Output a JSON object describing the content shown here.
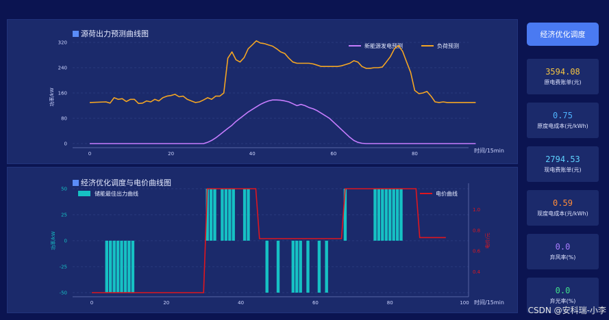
{
  "top_chart": {
    "title": "源荷出力预测曲线图",
    "ylabel": "功率/kW",
    "xlabel": "时间/15min",
    "legend": [
      "新能源发电预测",
      "负荷预测"
    ]
  },
  "bottom_chart": {
    "title": "经济优化调度与电价曲线图",
    "ylabel_left": "功率/kW",
    "ylabel_right": "电价/元",
    "xlabel": "时间/15min",
    "legend": [
      "储能最佳出力曲线",
      "电价曲线"
    ]
  },
  "sidebar": {
    "button_label": "经济优化调度",
    "cards": [
      {
        "value": "3594.08",
        "label": "原电费账单(元)",
        "color": "#f5c542"
      },
      {
        "value": "0.75",
        "label": "原度电成本(元/kWh)",
        "color": "#4fb3ff"
      },
      {
        "value": "2794.53",
        "label": "现电费账单(元)",
        "color": "#5fd3ff"
      },
      {
        "value": "0.59",
        "label": "现度电成本(元/kWh)",
        "color": "#ff8c3a"
      },
      {
        "value": "0.0",
        "label": "弃风率(%)",
        "color": "#a77bff"
      },
      {
        "value": "0.0",
        "label": "弃光率(%)",
        "color": "#3fe08a"
      }
    ]
  },
  "watermark": "CSDN @安科瑞-小李",
  "chart_data": [
    {
      "type": "line",
      "title": "源荷出力预测曲线图",
      "xlabel": "时间/15min",
      "ylabel": "功率/kW",
      "xlim": [
        0,
        96
      ],
      "ylim": [
        0,
        320
      ],
      "xticks": [
        0,
        20,
        40,
        60,
        80
      ],
      "yticks": [
        0,
        80,
        160,
        240,
        320
      ],
      "series": [
        {
          "name": "新能源发电预测",
          "color": "#c77dff",
          "x": [
            0,
            28,
            29,
            30,
            31,
            32,
            33,
            34,
            35,
            36,
            37,
            38,
            39,
            40,
            41,
            42,
            43,
            44,
            45,
            46,
            47,
            48,
            49,
            50,
            51,
            52,
            53,
            54,
            55,
            56,
            57,
            58,
            59,
            60,
            61,
            62,
            63,
            64,
            65,
            66,
            67,
            68,
            95
          ],
          "values": [
            0,
            0,
            4,
            10,
            18,
            28,
            38,
            48,
            58,
            70,
            80,
            90,
            100,
            108,
            116,
            124,
            130,
            135,
            138,
            138,
            137,
            135,
            132,
            126,
            120,
            124,
            120,
            114,
            110,
            104,
            96,
            88,
            80,
            68,
            56,
            44,
            32,
            20,
            10,
            4,
            1,
            0,
            0
          ]
        },
        {
          "name": "负荷预测",
          "color": "#f5a623",
          "x": [
            0,
            4,
            5,
            6,
            7,
            8,
            9,
            10,
            11,
            12,
            13,
            14,
            15,
            16,
            17,
            18,
            19,
            20,
            21,
            22,
            23,
            24,
            25,
            26,
            27,
            28,
            29,
            30,
            31,
            32,
            33,
            34,
            35,
            36,
            37,
            38,
            39,
            40,
            41,
            42,
            43,
            44,
            45,
            46,
            47,
            48,
            49,
            50,
            51,
            52,
            53,
            54,
            55,
            56,
            57,
            58,
            59,
            60,
            61,
            62,
            63,
            64,
            65,
            66,
            67,
            68,
            69,
            70,
            71,
            72,
            73,
            74,
            75,
            76,
            77,
            78,
            79,
            80,
            81,
            82,
            83,
            84,
            85,
            86,
            87,
            88,
            89,
            90,
            91,
            92,
            93,
            94,
            95
          ],
          "values": [
            130,
            132,
            128,
            145,
            140,
            142,
            133,
            140,
            140,
            127,
            128,
            135,
            132,
            140,
            135,
            145,
            150,
            152,
            156,
            148,
            150,
            140,
            135,
            130,
            132,
            138,
            145,
            140,
            150,
            150,
            160,
            270,
            290,
            265,
            258,
            272,
            300,
            312,
            325,
            318,
            316,
            312,
            308,
            300,
            290,
            285,
            270,
            258,
            254,
            254,
            254,
            254,
            252,
            248,
            244,
            244,
            244,
            244,
            244,
            246,
            250,
            254,
            262,
            258,
            244,
            238,
            238,
            240,
            240,
            242,
            258,
            275,
            300,
            310,
            292,
            258,
            225,
            168,
            158,
            160,
            165,
            150,
            132,
            130,
            132,
            130,
            130,
            130,
            130,
            130,
            130,
            130,
            130
          ]
        }
      ]
    },
    {
      "type": "bar",
      "title": "经济优化调度与电价曲线图",
      "xlabel": "时间/15min",
      "ylabel": "功率/kW",
      "y2label": "电价/元",
      "xlim": [
        0,
        100
      ],
      "ylim": [
        -50,
        50
      ],
      "y2lim": [
        0.2,
        1.2
      ],
      "xticks": [
        0,
        20,
        40,
        60,
        80,
        100
      ],
      "yticks": [
        -50,
        -25,
        0,
        25,
        50
      ],
      "y2ticks": [
        0.4,
        0.6,
        0.8,
        1.0
      ],
      "series": [
        {
          "name": "储能最佳出力曲线",
          "color": "#16c1c4",
          "x": [
            4,
            5,
            6,
            7,
            8,
            9,
            10,
            11,
            31,
            32,
            33,
            35,
            36,
            37,
            38,
            41,
            42,
            47,
            50,
            54,
            55,
            56,
            58,
            61,
            63,
            68,
            76,
            77,
            78,
            79,
            80,
            81,
            82,
            83
          ],
          "values": [
            -50,
            -50,
            -50,
            -50,
            -50,
            -50,
            -50,
            -50,
            50,
            50,
            50,
            50,
            50,
            50,
            50,
            50,
            50,
            -50,
            -50,
            -50,
            -50,
            -50,
            -50,
            -50,
            -50,
            50,
            50,
            50,
            50,
            50,
            50,
            50,
            50,
            50
          ]
        },
        {
          "name": "电价曲线",
          "color": "#e0161e",
          "x": [
            0,
            30,
            31,
            44,
            45,
            67,
            68,
            87,
            88,
            95
          ],
          "values": [
            0.2,
            0.2,
            1.2,
            1.2,
            0.72,
            0.72,
            1.2,
            1.2,
            0.73,
            0.73
          ]
        }
      ]
    }
  ]
}
